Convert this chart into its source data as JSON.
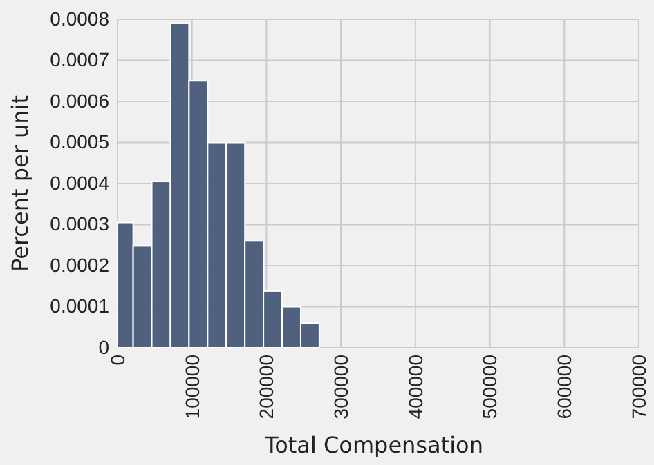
{
  "chart_data": {
    "type": "histogram",
    "xlabel": "Total Compensation",
    "ylabel": "Percent per unit",
    "bins": [
      0,
      21000,
      46000,
      71000,
      96000,
      121000,
      146000,
      171000,
      196000,
      221000,
      246000,
      271000
    ],
    "values": [
      0.000305,
      0.000248,
      0.000405,
      0.00079,
      0.00065,
      0.0005,
      0.0005,
      0.00026,
      0.000138,
      0.0001,
      6e-05
    ],
    "color": "#475778",
    "xlim": [
      0,
      700000
    ],
    "xticks": [
      0,
      100000,
      200000,
      300000,
      400000,
      500000,
      600000,
      700000
    ],
    "ylim": [
      0,
      0.0008
    ],
    "yticks": [
      0,
      0.0001,
      0.0002,
      0.0003,
      0.0004,
      0.0005,
      0.0006,
      0.0007,
      0.0008
    ],
    "grid": true
  }
}
